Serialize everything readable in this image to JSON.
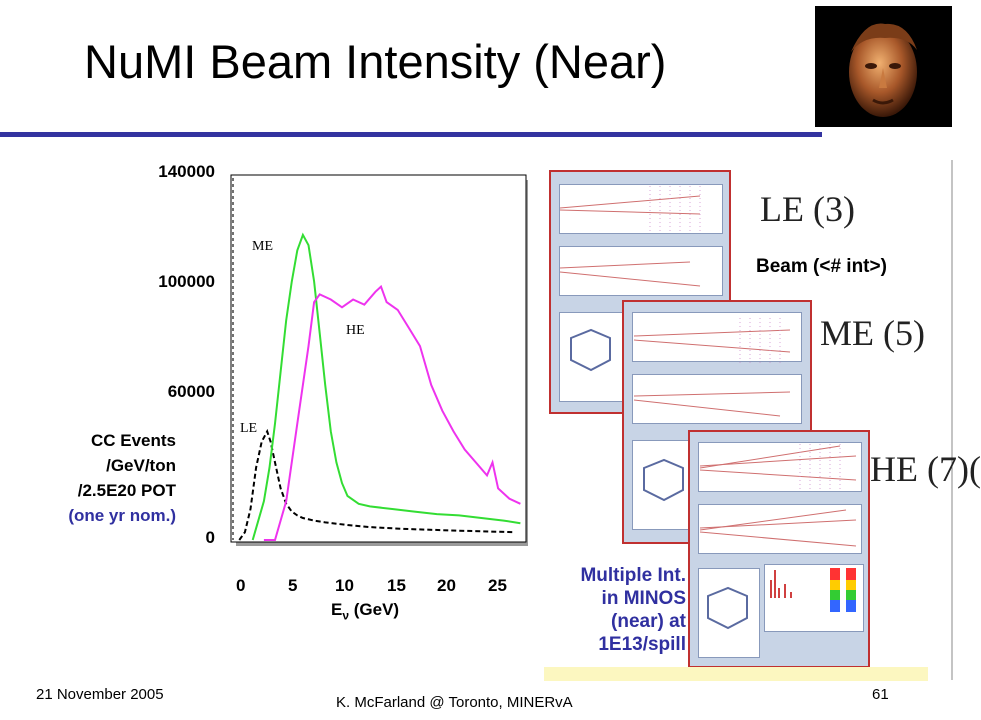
{
  "slide": {
    "title": "NuMI Beam Intensity (Near)",
    "footer_date": "21 November 2005",
    "footer_center": "K. McFarland @ Toronto, MINERvA",
    "page_number": "61",
    "accent_color": "#3333a0"
  },
  "axes": {
    "y_label_lines": [
      "CC Events",
      "/GeV/ton",
      "/2.5E20 POT"
    ],
    "y_label_note": "(one yr nom.)",
    "y_ticks": [
      "140000",
      "100000",
      "60000",
      "0"
    ],
    "x_ticks": [
      "0",
      "5",
      "10",
      "15",
      "20",
      "25"
    ],
    "x_label_main": "E",
    "x_label_sub": "ν",
    "x_label_unit": " (GeV)"
  },
  "chart_data": {
    "type": "line",
    "xlim": [
      0,
      26
    ],
    "ylim": [
      0,
      140000
    ],
    "grid": false,
    "series": [
      {
        "name": "LE",
        "color": "#000000",
        "dashed": true,
        "x": [
          0.3,
          0.8,
          1.3,
          1.8,
          2.3,
          2.8,
          3.1,
          3.5,
          4.0,
          4.5,
          5.0,
          5.5,
          6.0,
          7.0,
          8.0,
          10.0,
          12.0,
          15.0,
          20.0,
          25.0
        ],
        "y": [
          0,
          3000,
          12000,
          28000,
          38000,
          42000,
          38000,
          30000,
          20000,
          14000,
          11000,
          9500,
          8500,
          7500,
          6800,
          5800,
          5000,
          4300,
          3600,
          3000
        ]
      },
      {
        "name": "ME",
        "color": "#33dd33",
        "dashed": false,
        "x": [
          1.5,
          2.5,
          3.0,
          3.5,
          4.0,
          4.5,
          5.0,
          5.5,
          6.0,
          6.5,
          7.0,
          7.5,
          8.0,
          8.5,
          9.0,
          9.5,
          10.0,
          11.0,
          12.0,
          14.0,
          16.0,
          18.0,
          20.0,
          22.0,
          24.0,
          25.5
        ],
        "y": [
          0,
          15000,
          28000,
          45000,
          65000,
          85000,
          100000,
          112000,
          118000,
          114000,
          100000,
          80000,
          60000,
          42000,
          30000,
          22000,
          17000,
          14000,
          13000,
          12000,
          11000,
          10000,
          9500,
          8500,
          7500,
          6500
        ]
      },
      {
        "name": "HE",
        "color": "#ee33ee",
        "dashed": false,
        "x": [
          2.5,
          3.5,
          4.5,
          5.5,
          6.5,
          7.0,
          7.5,
          8.5,
          9.5,
          10.5,
          11.5,
          12.5,
          13.0,
          13.5,
          14.5,
          15.5,
          16.5,
          17.5,
          18.5,
          19.5,
          20.5,
          21.5,
          22.5,
          23.0,
          23.5,
          24.5,
          25.5
        ],
        "y": [
          0,
          0,
          15000,
          45000,
          75000,
          92000,
          95000,
          93000,
          90000,
          93000,
          91000,
          96000,
          98000,
          92000,
          89000,
          82000,
          75000,
          60000,
          50000,
          42000,
          35000,
          30000,
          25000,
          30000,
          20000,
          16000,
          14000
        ]
      }
    ]
  },
  "event_displays": {
    "heading": "Beam (<# int>)",
    "panels": [
      {
        "label": "LE (3)"
      },
      {
        "label": "ME (5)"
      },
      {
        "label": "HE (7)("
      }
    ],
    "caption_lines": [
      "Multiple Int.",
      "in MINOS",
      "(near) at",
      "1E13/spill"
    ]
  }
}
